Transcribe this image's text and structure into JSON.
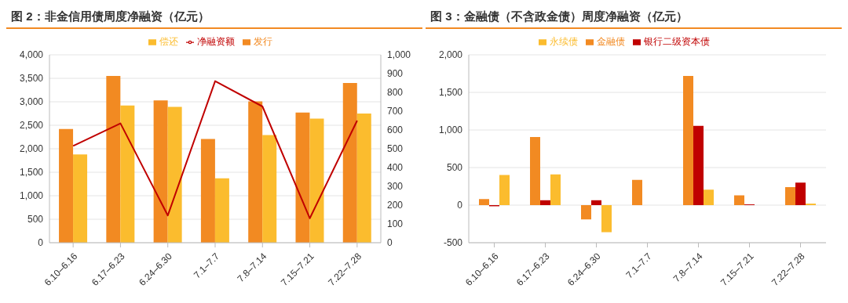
{
  "chart_data": [
    {
      "type": "bar",
      "title": "图 2：非金信用债周度净融资（亿元）",
      "categories": [
        "6.10–6.16",
        "6.17–6.23",
        "6.24–6.30",
        "7.1–7.7",
        "7.8–7.14",
        "7.15–7.21",
        "7.22–7.28"
      ],
      "series": [
        {
          "name": "发行",
          "color": "#f28a22",
          "values": [
            2420,
            3550,
            3030,
            2210,
            3010,
            2770,
            3400
          ]
        },
        {
          "name": "偿还",
          "color": "#fbbc2e",
          "values": [
            1880,
            2920,
            2890,
            1370,
            2290,
            2640,
            2750
          ]
        },
        {
          "name": "净融资额",
          "type": "line",
          "axis": "y2",
          "color": "#c00000",
          "values": [
            515,
            635,
            145,
            860,
            725,
            130,
            650
          ]
        }
      ],
      "ylim": [
        0,
        4000
      ],
      "yticks": [
        0,
        500,
        {
          "value": 1000,
          "label": "1,000"
        },
        {
          "value": 1500,
          "label": "1,500"
        },
        {
          "value": 2000,
          "label": "2,000"
        },
        {
          "value": 2500,
          "label": "2,500"
        },
        {
          "value": 3000,
          "label": "3,000"
        },
        {
          "value": 3500,
          "label": "3,500"
        },
        {
          "value": 4000,
          "label": "4,000"
        }
      ],
      "y2lim": [
        0,
        1000
      ],
      "y2ticks": [
        0,
        100,
        200,
        300,
        400,
        500,
        600,
        700,
        800,
        900,
        {
          "value": 1000,
          "label": "1,000"
        }
      ],
      "grid": "y",
      "legend": "top"
    },
    {
      "type": "bar",
      "title": "图 3：金融债（不含政金债）周度净融资（亿元）",
      "categories": [
        "6.10–6.16",
        "6.17–6.23",
        "6.24–6.30",
        "7.1–7.7",
        "7.8–7.14",
        "7.15–7.21",
        "7.22–7.28"
      ],
      "series": [
        {
          "name": "金融债",
          "color": "#f28a22",
          "values": [
            80,
            905,
            -190,
            335,
            1720,
            130,
            240
          ]
        },
        {
          "name": "银行二级资本债",
          "color": "#c00000",
          "values": [
            -15,
            65,
            65,
            0,
            1055,
            10,
            300
          ]
        },
        {
          "name": "永续债",
          "color": "#fbbc2e",
          "values": [
            400,
            410,
            -360,
            0,
            205,
            0,
            20
          ]
        }
      ],
      "ylim": [
        -500,
        2000
      ],
      "yticks": [
        -500,
        0,
        500,
        {
          "value": 1000,
          "label": "1,000"
        },
        {
          "value": 1500,
          "label": "1,500"
        },
        {
          "value": 2000,
          "label": "2,000"
        }
      ],
      "grid": "y",
      "legend": "top"
    }
  ]
}
